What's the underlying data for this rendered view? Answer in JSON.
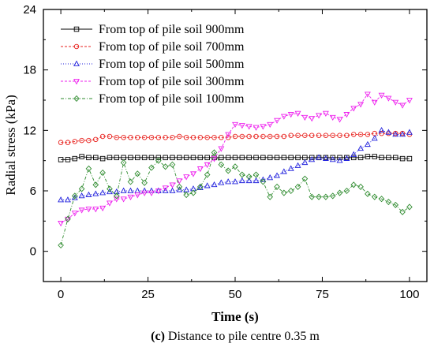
{
  "chart_data": {
    "type": "line",
    "xlabel": "Time (s)",
    "ylabel": "Radial stress (kPa)",
    "xlim": [
      -5,
      105
    ],
    "ylim": [
      -3,
      24
    ],
    "xticks": [
      0,
      25,
      50,
      75,
      100
    ],
    "yticks": [
      0,
      6,
      12,
      18,
      24
    ],
    "grid": false,
    "legend_position": "top-left",
    "caption_prefix": "(c)",
    "caption_text": " Distance to pile centre 0.35 m",
    "x": [
      0,
      2,
      4,
      6,
      8,
      10,
      12,
      14,
      16,
      18,
      20,
      22,
      24,
      26,
      28,
      30,
      32,
      34,
      36,
      38,
      40,
      42,
      44,
      46,
      48,
      50,
      52,
      54,
      56,
      58,
      60,
      62,
      64,
      66,
      68,
      70,
      72,
      74,
      76,
      78,
      80,
      82,
      84,
      86,
      88,
      90,
      92,
      94,
      96,
      98,
      100
    ],
    "series": [
      {
        "name": "From top of pile soil 900mm",
        "color": "#000000",
        "marker": "square",
        "dash": "solid",
        "values": [
          9.1,
          9.1,
          9.2,
          9.4,
          9.3,
          9.3,
          9.2,
          9.3,
          9.3,
          9.3,
          9.3,
          9.3,
          9.3,
          9.3,
          9.3,
          9.3,
          9.3,
          9.3,
          9.3,
          9.3,
          9.3,
          9.3,
          9.3,
          9.3,
          9.3,
          9.3,
          9.3,
          9.3,
          9.3,
          9.3,
          9.3,
          9.3,
          9.3,
          9.3,
          9.3,
          9.3,
          9.3,
          9.3,
          9.3,
          9.3,
          9.3,
          9.3,
          9.3,
          9.3,
          9.4,
          9.4,
          9.3,
          9.3,
          9.3,
          9.2,
          9.2
        ]
      },
      {
        "name": "From top of pile soil 700mm",
        "color": "#e8211d",
        "marker": "circle",
        "dash": "dashed",
        "values": [
          10.8,
          10.8,
          10.9,
          11.0,
          11.0,
          11.1,
          11.4,
          11.4,
          11.3,
          11.3,
          11.3,
          11.3,
          11.3,
          11.3,
          11.3,
          11.3,
          11.3,
          11.4,
          11.3,
          11.3,
          11.3,
          11.3,
          11.3,
          11.3,
          11.3,
          11.4,
          11.4,
          11.4,
          11.4,
          11.4,
          11.4,
          11.4,
          11.4,
          11.5,
          11.5,
          11.5,
          11.5,
          11.5,
          11.5,
          11.5,
          11.5,
          11.5,
          11.6,
          11.6,
          11.6,
          11.7,
          11.7,
          11.7,
          11.7,
          11.7,
          11.6
        ]
      },
      {
        "name": "From top of pile soil 500mm",
        "color": "#2222dd",
        "marker": "triangle-up",
        "dash": "dotted",
        "values": [
          5.1,
          5.1,
          5.3,
          5.5,
          5.6,
          5.7,
          5.8,
          5.9,
          5.9,
          6.0,
          6.0,
          6.0,
          6.0,
          6.0,
          6.0,
          6.0,
          6.0,
          6.1,
          6.1,
          6.2,
          6.3,
          6.5,
          6.6,
          6.8,
          6.9,
          6.9,
          7.0,
          7.0,
          7.0,
          7.1,
          7.3,
          7.5,
          7.9,
          8.2,
          8.5,
          8.8,
          9.1,
          9.3,
          9.2,
          9.1,
          9.0,
          9.2,
          9.6,
          10.2,
          10.6,
          11.2,
          12.0,
          11.8,
          11.6,
          11.6,
          11.8
        ]
      },
      {
        "name": "From top of pile soil 300mm",
        "color": "#ee22ee",
        "marker": "triangle-down",
        "dash": "dashed",
        "values": [
          2.8,
          3.2,
          3.8,
          4.1,
          4.2,
          4.2,
          4.3,
          4.8,
          5.2,
          5.2,
          5.4,
          5.6,
          5.8,
          5.8,
          6.0,
          6.3,
          6.6,
          7.0,
          7.4,
          7.7,
          8.2,
          8.6,
          9.2,
          10.2,
          11.6,
          12.6,
          12.5,
          12.4,
          12.3,
          12.4,
          12.6,
          13.0,
          13.4,
          13.6,
          13.7,
          13.3,
          13.2,
          13.5,
          13.7,
          13.3,
          13.1,
          13.6,
          14.2,
          14.6,
          15.6,
          14.8,
          15.5,
          15.2,
          14.8,
          14.5,
          15.0
        ]
      },
      {
        "name": "From top of pile soil 100mm",
        "color": "#2e8b2e",
        "marker": "diamond",
        "dash": "dashdot",
        "values": [
          0.6,
          3.2,
          5.5,
          6.2,
          8.2,
          6.6,
          7.8,
          6.2,
          5.5,
          8.8,
          6.9,
          7.7,
          6.8,
          8.3,
          9.0,
          8.4,
          8.6,
          6.4,
          5.6,
          5.8,
          6.4,
          7.6,
          9.8,
          8.6,
          8.0,
          8.4,
          7.6,
          7.4,
          7.6,
          6.9,
          5.4,
          6.4,
          5.8,
          6.0,
          6.4,
          7.2,
          5.4,
          5.4,
          5.4,
          5.5,
          5.8,
          6.0,
          6.6,
          6.4,
          5.7,
          5.4,
          5.2,
          4.9,
          4.6,
          3.9,
          4.4
        ]
      }
    ]
  }
}
